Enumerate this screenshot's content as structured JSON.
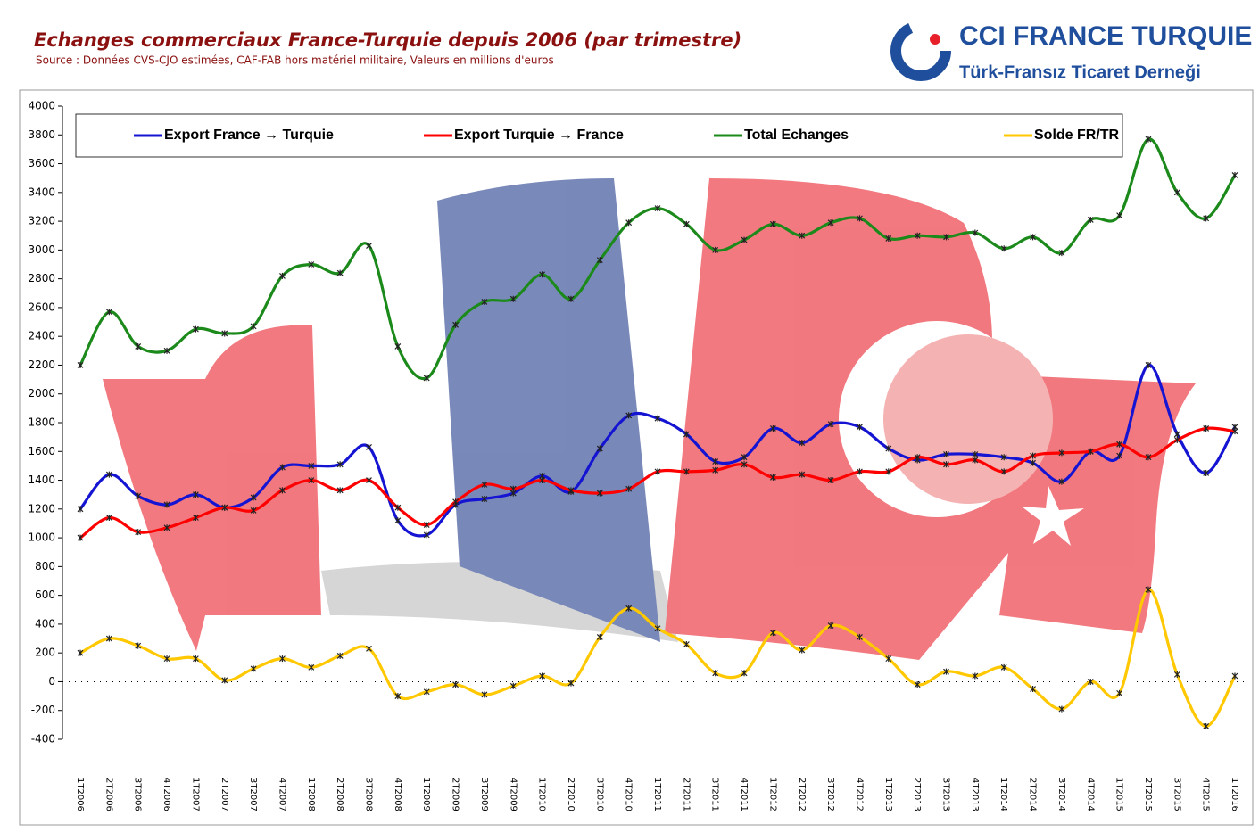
{
  "logo": {
    "name": "CCI FRANCE TURQUIE",
    "subtitle": "Türk-Fransız Ticaret Derneği"
  },
  "chart_data": {
    "type": "line",
    "title": "Echanges commerciaux France-Turquie depuis 2006 (par trimestre)",
    "subtitle": "Source : Données CVS-CJO estimées, CAF-FAB hors matériel militaire, Valeurs en millions d'euros",
    "categories": [
      "1T2006",
      "2T2006",
      "3T2006",
      "4T2006",
      "1T2007",
      "2T2007",
      "3T2007",
      "4T2007",
      "1T2008",
      "2T2008",
      "3T2008",
      "4T2008",
      "1T2009",
      "2T2009",
      "3T2009",
      "4T2009",
      "1T2010",
      "2T2010",
      "3T2010",
      "4T2010",
      "1T2011",
      "2T2011",
      "3T2011",
      "4T2011",
      "1T2012",
      "2T2012",
      "3T2012",
      "4T2012",
      "1T2013",
      "2T2013",
      "3T2013",
      "4T2013",
      "1T2014",
      "2T2014",
      "3T2014",
      "4T2014",
      "1T2015",
      "2T2015",
      "3T2015",
      "4T2015",
      "1T2016"
    ],
    "series": [
      {
        "name": "Export France → Turquie",
        "color": "#1414d2",
        "values": [
          1200,
          1440,
          1290,
          1230,
          1300,
          1210,
          1280,
          1490,
          1500,
          1510,
          1630,
          1120,
          1020,
          1230,
          1270,
          1310,
          1430,
          1320,
          1620,
          1850,
          1830,
          1720,
          1530,
          1560,
          1760,
          1660,
          1790,
          1770,
          1620,
          1540,
          1580,
          1580,
          1560,
          1520,
          1390,
          1600,
          1570,
          2200,
          1720,
          1450,
          1770
        ]
      },
      {
        "name": "Export Turquie → France",
        "color": "#ff0000",
        "values": [
          1000,
          1140,
          1040,
          1070,
          1140,
          1210,
          1190,
          1330,
          1400,
          1330,
          1400,
          1210,
          1090,
          1250,
          1370,
          1340,
          1400,
          1330,
          1310,
          1340,
          1460,
          1460,
          1470,
          1510,
          1420,
          1440,
          1400,
          1460,
          1460,
          1560,
          1510,
          1540,
          1460,
          1570,
          1590,
          1600,
          1650,
          1560,
          1680,
          1760,
          1740
        ]
      },
      {
        "name": "Total Echanges",
        "color": "#1b8a1b",
        "values": [
          2200,
          2570,
          2330,
          2300,
          2450,
          2420,
          2470,
          2820,
          2900,
          2840,
          3030,
          2330,
          2110,
          2480,
          2640,
          2660,
          2830,
          2660,
          2930,
          3190,
          3290,
          3180,
          3000,
          3070,
          3180,
          3100,
          3190,
          3220,
          3080,
          3100,
          3090,
          3120,
          3010,
          3090,
          2980,
          3210,
          3240,
          3770,
          3400,
          3220,
          3520
        ]
      },
      {
        "name": "Solde FR/TR",
        "color": "#ffc800",
        "values": [
          200,
          300,
          250,
          160,
          160,
          10,
          90,
          160,
          100,
          180,
          230,
          -100,
          -70,
          -20,
          -90,
          -30,
          40,
          -10,
          310,
          510,
          370,
          260,
          60,
          60,
          340,
          220,
          390,
          310,
          160,
          -20,
          70,
          40,
          100,
          -50,
          -190,
          0,
          -80,
          640,
          50,
          -310,
          40
        ]
      }
    ],
    "ylim": [
      -400,
      4000
    ],
    "yticks": [
      -400,
      -200,
      0,
      200,
      400,
      600,
      800,
      1000,
      1200,
      1400,
      1600,
      1800,
      2000,
      2200,
      2400,
      2600,
      2800,
      3000,
      3200,
      3400,
      3600,
      3800,
      4000
    ],
    "legend": "top"
  }
}
